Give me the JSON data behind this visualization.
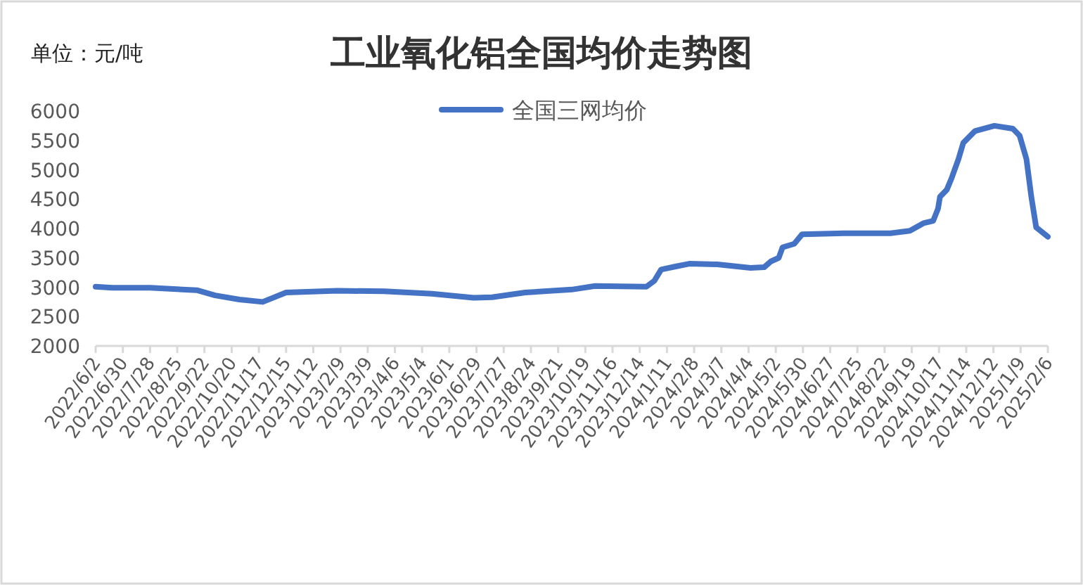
{
  "chart_data": {
    "type": "line",
    "title": "工业氧化铝全国均价走势图",
    "ylabel": "单位：元/吨",
    "legend": "top",
    "grid": false,
    "marker": "none",
    "line_style": "solid",
    "x": [
      "2022-06-02",
      "2022-06-19",
      "2022-07-28",
      "2022-09-14",
      "2022-10-03",
      "2022-10-28",
      "2022-11-21",
      "2022-12-15",
      "2023-02-06",
      "2023-03-26",
      "2023-05-14",
      "2023-06-26",
      "2023-07-15",
      "2023-08-18",
      "2023-10-05",
      "2023-10-29",
      "2023-12-21",
      "2023-12-29",
      "2024-01-05",
      "2024-01-19",
      "2024-02-03",
      "2024-03-03",
      "2024-04-06",
      "2024-04-20",
      "2024-04-27",
      "2024-05-05",
      "2024-05-09",
      "2024-05-21",
      "2024-05-29",
      "2024-07-11",
      "2024-08-28",
      "2024-09-17",
      "2024-10-01",
      "2024-10-11",
      "2024-10-16",
      "2024-10-18",
      "2024-10-25",
      "2024-10-30",
      "2024-11-06",
      "2024-11-11",
      "2024-11-23",
      "2024-12-13",
      "2025-01-01",
      "2025-01-08",
      "2025-01-15",
      "2025-01-20",
      "2025-01-25",
      "2025-02-06"
    ],
    "series": [
      {
        "name": "全国三网均价",
        "color": "#4472c4",
        "values": [
          3010,
          2990,
          2990,
          2950,
          2860,
          2790,
          2750,
          2910,
          2940,
          2930,
          2890,
          2820,
          2830,
          2910,
          2960,
          3020,
          3010,
          3110,
          3300,
          3350,
          3400,
          3390,
          3330,
          3340,
          3440,
          3500,
          3680,
          3740,
          3900,
          3920,
          3920,
          3960,
          4090,
          4130,
          4340,
          4540,
          4660,
          4860,
          5180,
          5460,
          5660,
          5750,
          5700,
          5580,
          5180,
          4540,
          4020,
          3860
        ]
      }
    ],
    "xlim": [
      "2022-06-02",
      "2025-02-06"
    ],
    "xticks": [
      {
        "value": "2022-06-02",
        "label": "2022/6/2"
      },
      {
        "value": "2022-06-30",
        "label": "2022/6/30"
      },
      {
        "value": "2022-07-28",
        "label": "2022/7/28"
      },
      {
        "value": "2022-08-25",
        "label": "2022/8/25"
      },
      {
        "value": "2022-09-22",
        "label": "2022/9/22"
      },
      {
        "value": "2022-10-20",
        "label": "2022/10/20"
      },
      {
        "value": "2022-11-17",
        "label": "2022/11/17"
      },
      {
        "value": "2022-12-15",
        "label": "2022/12/15"
      },
      {
        "value": "2023-01-12",
        "label": "2023/1/12"
      },
      {
        "value": "2023-02-09",
        "label": "2023/2/9"
      },
      {
        "value": "2023-03-09",
        "label": "2023/3/9"
      },
      {
        "value": "2023-04-06",
        "label": "2023/4/6"
      },
      {
        "value": "2023-05-04",
        "label": "2023/5/4"
      },
      {
        "value": "2023-06-01",
        "label": "2023/6/1"
      },
      {
        "value": "2023-06-29",
        "label": "2023/6/29"
      },
      {
        "value": "2023-07-27",
        "label": "2023/7/27"
      },
      {
        "value": "2023-08-24",
        "label": "2023/8/24"
      },
      {
        "value": "2023-09-21",
        "label": "2023/9/21"
      },
      {
        "value": "2023-10-19",
        "label": "2023/10/19"
      },
      {
        "value": "2023-11-16",
        "label": "2023/11/16"
      },
      {
        "value": "2023-12-14",
        "label": "2023/12/14"
      },
      {
        "value": "2024-01-11",
        "label": "2024/1/11"
      },
      {
        "value": "2024-02-08",
        "label": "2024/2/8"
      },
      {
        "value": "2024-03-07",
        "label": "2024/3/7"
      },
      {
        "value": "2024-04-04",
        "label": "2024/4/4"
      },
      {
        "value": "2024-05-02",
        "label": "2024/5/2"
      },
      {
        "value": "2024-05-30",
        "label": "2024/5/30"
      },
      {
        "value": "2024-06-27",
        "label": "2024/6/27"
      },
      {
        "value": "2024-07-25",
        "label": "2024/7/25"
      },
      {
        "value": "2024-08-22",
        "label": "2024/8/22"
      },
      {
        "value": "2024-09-19",
        "label": "2024/9/19"
      },
      {
        "value": "2024-10-17",
        "label": "2024/10/17"
      },
      {
        "value": "2024-11-14",
        "label": "2024/11/14"
      },
      {
        "value": "2024-12-12",
        "label": "2024/12/12"
      },
      {
        "value": "2025-01-09",
        "label": "2025/1/9"
      },
      {
        "value": "2025-02-06",
        "label": "2025/2/6"
      }
    ],
    "ylim": [
      2000,
      6000
    ],
    "yticks": [
      2000,
      2500,
      3000,
      3500,
      4000,
      4500,
      5000,
      5500,
      6000
    ]
  }
}
